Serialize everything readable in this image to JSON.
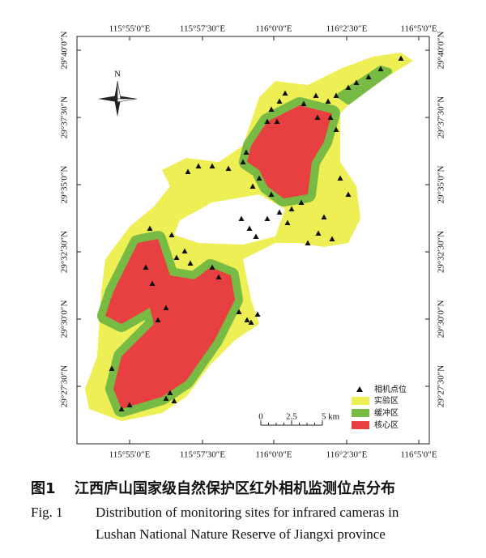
{
  "map": {
    "north": "N",
    "x_ticks": [
      "115°55′0″E",
      "115°57′30″E",
      "116°0′0″E",
      "116°2′30″E",
      "116°5′0″E"
    ],
    "y_ticks": [
      "29°40′0″N",
      "29°37′30″N",
      "29°35′0″N",
      "29°32′30″N",
      "29°30′0″N",
      "29°27′30″N"
    ],
    "legend": [
      "相机点位",
      "实验区",
      "缓冲区",
      "核心区"
    ],
    "scale": [
      "0",
      "2.5",
      "5 km"
    ]
  },
  "caption": {
    "cn_label": "图1",
    "cn_title": "江西庐山国家级自然保护区红外相机监测位点分布",
    "en_label": "Fig. 1",
    "en_title_lines": [
      "Distribution of monitoring sites for infrared cameras in",
      "Lushan National Nature Reserve of Jiangxi province"
    ]
  }
}
